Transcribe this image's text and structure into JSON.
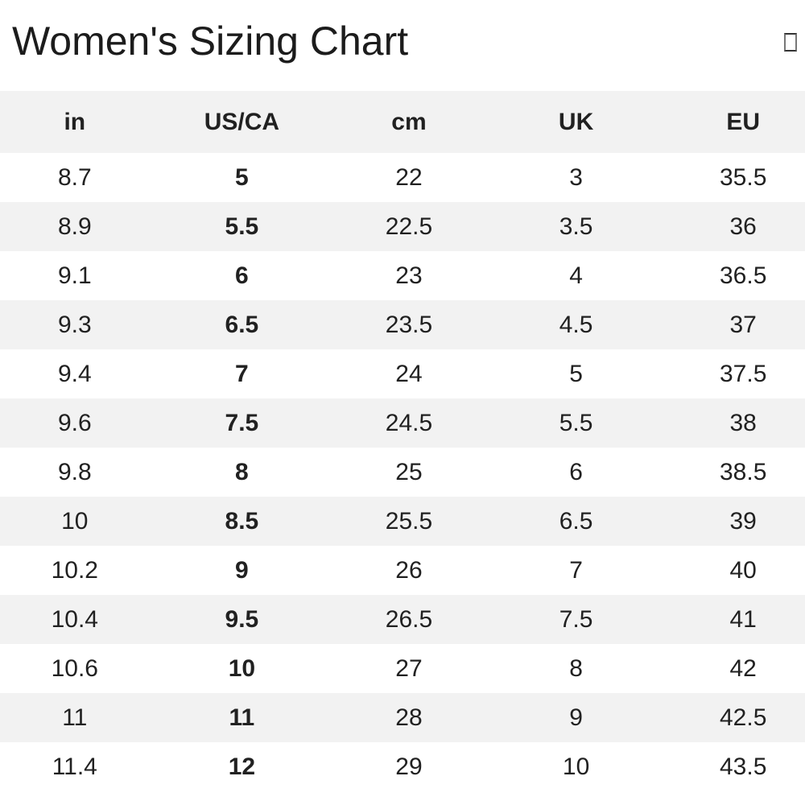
{
  "title": "Women's Sizing Chart",
  "icons": {
    "header_right": "missing-glyph-box"
  },
  "colors": {
    "row_alt_bg": "#f2f2f2",
    "header_bg": "#f2f2f2",
    "text": "#212121",
    "page_bg": "#ffffff"
  },
  "table": {
    "columns": [
      "in",
      "US/CA",
      "cm",
      "UK",
      "EU"
    ],
    "rows": [
      [
        "8.7",
        "5",
        "22",
        "3",
        "35.5"
      ],
      [
        "8.9",
        "5.5",
        "22.5",
        "3.5",
        "36"
      ],
      [
        "9.1",
        "6",
        "23",
        "4",
        "36.5"
      ],
      [
        "9.3",
        "6.5",
        "23.5",
        "4.5",
        "37"
      ],
      [
        "9.4",
        "7",
        "24",
        "5",
        "37.5"
      ],
      [
        "9.6",
        "7.5",
        "24.5",
        "5.5",
        "38"
      ],
      [
        "9.8",
        "8",
        "25",
        "6",
        "38.5"
      ],
      [
        "10",
        "8.5",
        "25.5",
        "6.5",
        "39"
      ],
      [
        "10.2",
        "9",
        "26",
        "7",
        "40"
      ],
      [
        "10.4",
        "9.5",
        "26.5",
        "7.5",
        "41"
      ],
      [
        "10.6",
        "10",
        "27",
        "8",
        "42"
      ],
      [
        "11",
        "11",
        "28",
        "9",
        "42.5"
      ],
      [
        "11.4",
        "12",
        "29",
        "10",
        "43.5"
      ]
    ]
  }
}
